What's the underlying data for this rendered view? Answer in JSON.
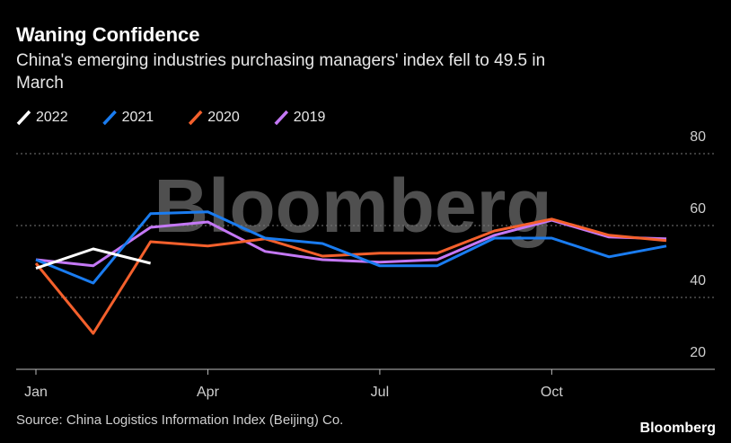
{
  "chart_data": {
    "type": "line",
    "title": "Waning Confidence",
    "subtitle": "China's emerging industries purchasing managers' index fell to 49.5 in March",
    "categories": [
      "Jan",
      null,
      null,
      "Apr",
      null,
      null,
      "Jul",
      null,
      null,
      "Oct",
      null,
      null
    ],
    "series": [
      {
        "name": "2022",
        "color": "#ffffff",
        "values": [
          48.1,
          53.5,
          49.5,
          null,
          null,
          null,
          null,
          null,
          null,
          null,
          null,
          null
        ]
      },
      {
        "name": "2021",
        "color": "#1a7cf0",
        "values": [
          50.5,
          44,
          63.3,
          63.8,
          56.5,
          55,
          48.8,
          48.8,
          56.5,
          56.5,
          51.3,
          54.3
        ]
      },
      {
        "name": "2020",
        "color": "#f4602c",
        "values": [
          49.5,
          30,
          55.5,
          54.3,
          56.3,
          51.5,
          52.3,
          52.3,
          58.5,
          61.8,
          57.3,
          55.8
        ]
      },
      {
        "name": "2019",
        "color": "#c478f5",
        "values": [
          50.5,
          48.8,
          59.5,
          61,
          52.8,
          50.5,
          49.8,
          50.5,
          57.3,
          61.5,
          56.8,
          56.3
        ]
      }
    ],
    "ylim": [
      20,
      80
    ],
    "yticks": [
      20,
      40,
      60,
      80
    ],
    "grid": true,
    "legend": "top-left",
    "source": "Source: China Logistics Information Index (Beijing) Co.",
    "watermark": "Bloomberg",
    "logo": "Bloomberg"
  }
}
